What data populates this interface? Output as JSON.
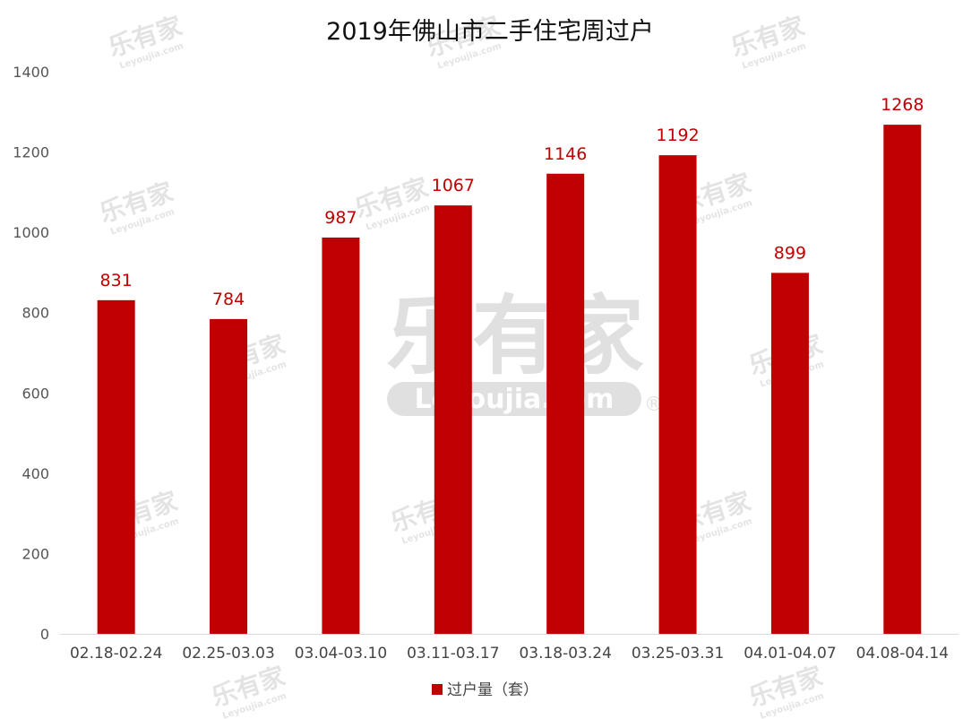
{
  "chart_data": {
    "type": "bar",
    "title": "2019年佛山市二手住宅周过户",
    "xlabel": "",
    "ylabel": "",
    "categories": [
      "02.18-02.24",
      "02.25-03.03",
      "03.04-03.10",
      "03.11-03.17",
      "03.18-03.24",
      "03.25-03.31",
      "04.01-04.07",
      "04.08-04.14"
    ],
    "series": [
      {
        "name": "过户量（套）",
        "values": [
          831,
          784,
          987,
          1067,
          1146,
          1192,
          899,
          1268
        ],
        "color": "#c00000"
      }
    ],
    "ylim": [
      0,
      1400
    ],
    "yticks": [
      0,
      200,
      400,
      600,
      800,
      1000,
      1200,
      1400
    ],
    "data_labels": true,
    "grid": false,
    "legend_position": "bottom"
  },
  "watermark": {
    "brand": "乐有家",
    "domain": "Leyoujia.com",
    "registered": "®"
  }
}
